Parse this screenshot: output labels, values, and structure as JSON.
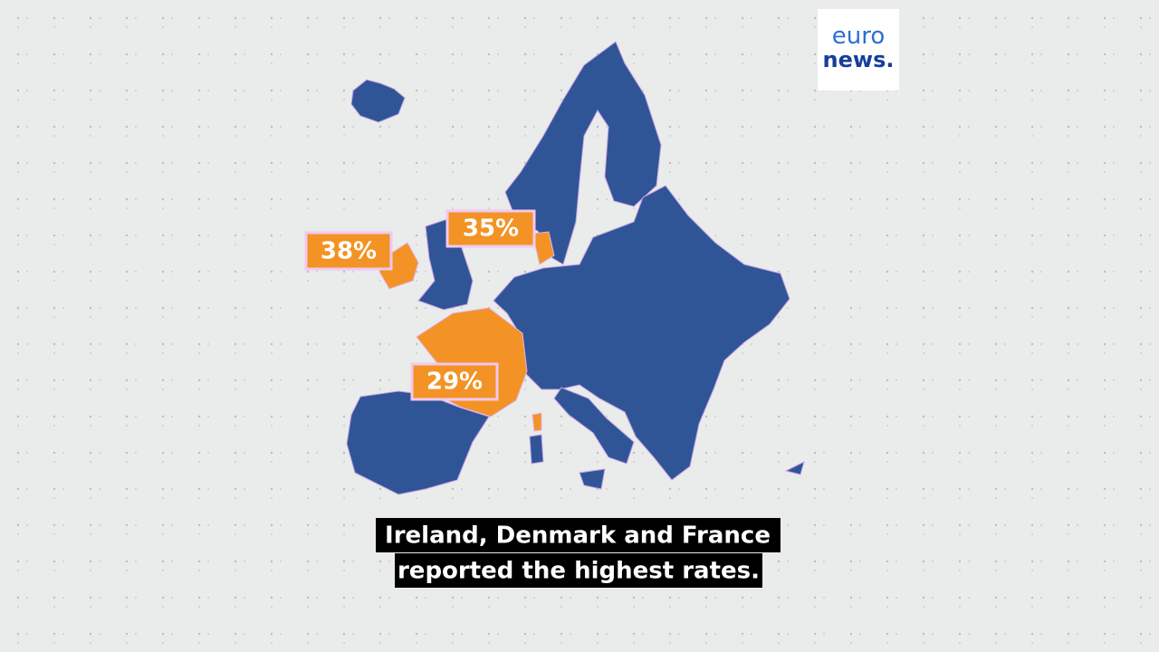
{
  "logo": {
    "line1": "euro",
    "line2": "news."
  },
  "map": {
    "labels": [
      {
        "country": null,
        "text": "38%"
      },
      {
        "country": null,
        "text": "35%"
      },
      {
        "country": null,
        "text": "29%"
      }
    ]
  },
  "subtitle": {
    "lines": [
      "Ireland, Denmark and France",
      "reported the highest rates."
    ]
  }
}
